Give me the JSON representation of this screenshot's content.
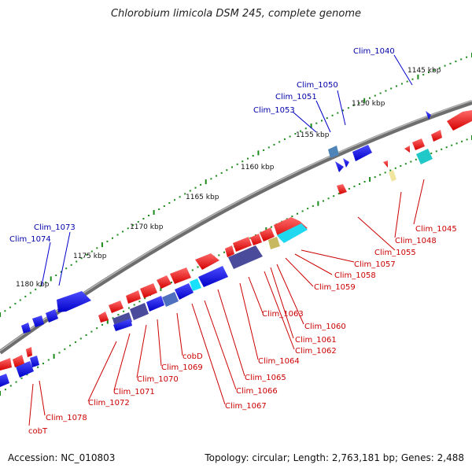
{
  "title": "Chlorobium limicola DSM 245, complete genome",
  "footer": {
    "accession": "Accession: NC_010803",
    "summary": "Topology: circular; Length: 2,763,181 bp; Genes: 2,488"
  },
  "colors": {
    "forward": "#ff0000",
    "reverse": "#0000ee",
    "backbone": "#888888",
    "tick": "#1a8a1a",
    "label_forward": "#cc0000",
    "label_reverse": "#0000aa"
  },
  "scale_labels": [
    "1145 kbp",
    "1150 kbp",
    "1155 kbp",
    "1160 kbp",
    "1165 kbp",
    "1170 kbp",
    "1175 kbp",
    "1180 kbp"
  ],
  "reverse_gene_labels": [
    "Clim_1040",
    "Clim_1050",
    "Clim_1051",
    "Clim_1053",
    "Clim_1073",
    "Clim_1074"
  ],
  "forward_gene_labels": [
    "Clim_1045",
    "Clim_1048",
    "Clim_1055",
    "Clim_1057",
    "Clim_1058",
    "Clim_1059",
    "Clim_1060",
    "Clim_1061",
    "Clim_1062",
    "Clim_1063",
    "Clim_1064",
    "Clim_1065",
    "Clim_1066",
    "Clim_1067",
    "cobD",
    "Clim_1069",
    "Clim_1070",
    "Clim_1071",
    "Clim_1072",
    "Clim_1078",
    "cobT"
  ]
}
